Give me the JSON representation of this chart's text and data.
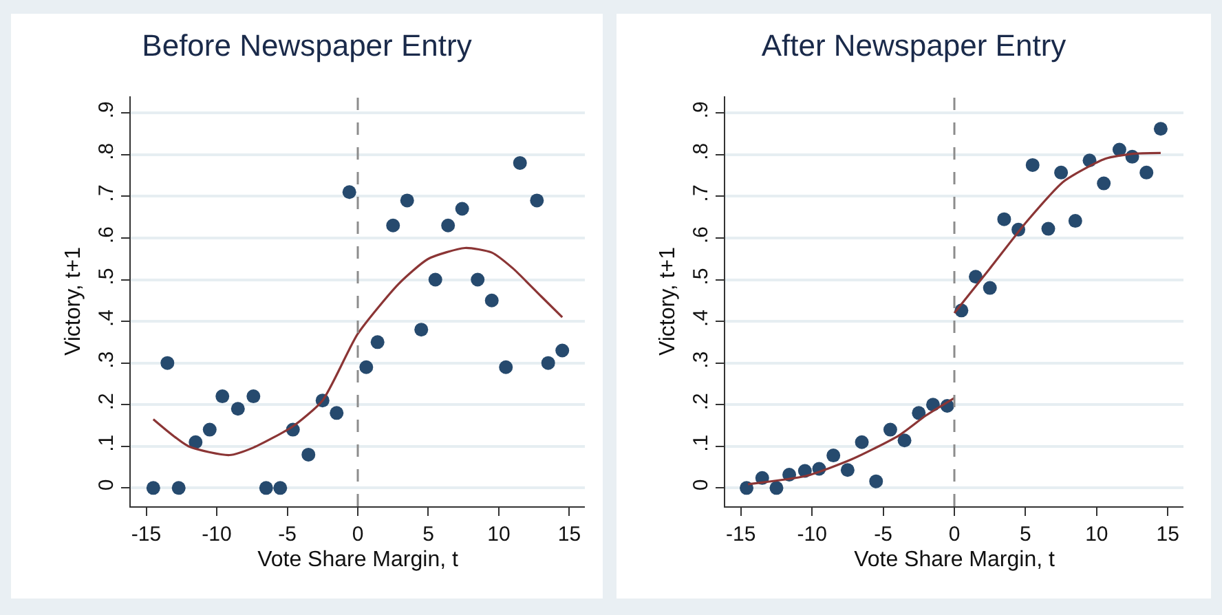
{
  "chart_data": [
    {
      "type": "scatter",
      "title": "Before Newspaper Entry",
      "xlabel": "Vote Share Margin, t",
      "ylabel": "Victory, t+1",
      "xlim": [
        -16.1,
        16.1
      ],
      "xticks": [
        -15,
        -10,
        -5,
        0,
        5,
        10,
        15
      ],
      "ylim": [
        -0.044,
        0.94
      ],
      "yticks": [
        {
          "value": 0,
          "label": "0"
        },
        {
          "value": 0.1,
          "label": ".1"
        },
        {
          "value": 0.2,
          "label": ".2"
        },
        {
          "value": 0.3,
          "label": ".3"
        },
        {
          "value": 0.4,
          "label": ".4"
        },
        {
          "value": 0.5,
          "label": ".5"
        },
        {
          "value": 0.6,
          "label": ".6"
        },
        {
          "value": 0.7,
          "label": ".7"
        },
        {
          "value": 0.8,
          "label": ".8"
        },
        {
          "value": 0.9,
          "label": ".9"
        }
      ],
      "grid": "y",
      "ref_lines": [
        {
          "axis": "x",
          "value": 0,
          "color": "#8c8c8c",
          "line_style": "dashed"
        }
      ],
      "series": [
        {
          "marker": "circle",
          "color": "#264a6e",
          "x": [
            -14.5,
            -13.5,
            -12.7,
            -11.5,
            -10.5,
            -9.6,
            -8.5,
            -7.4,
            -6.5,
            -5.5,
            -4.6,
            -3.5,
            -2.5,
            -1.5,
            -0.6,
            0.6,
            1.4,
            2.5,
            3.5,
            4.5,
            5.5,
            6.4,
            7.4,
            8.5,
            9.5,
            10.5,
            11.5,
            12.7,
            13.5,
            14.5
          ],
          "values": [
            0,
            0.3,
            0,
            0.11,
            0.14,
            0.22,
            0.19,
            0.22,
            0,
            0,
            0.14,
            0.08,
            0.21,
            0.18,
            0.71,
            0.29,
            0.35,
            0.63,
            0.69,
            0.38,
            0.5,
            0.63,
            0.67,
            0.5,
            0.45,
            0.29,
            0.78,
            0.69,
            0.3,
            0.33
          ]
        },
        {
          "type": "line",
          "marker": "none",
          "color": "#8b3535",
          "line_style": "solid",
          "x": [
            -14.5,
            -12,
            -9.1,
            -7.4,
            -4.6,
            -2.5,
            0,
            2.9,
            5,
            7.6,
            9.5,
            11,
            13,
            14.5
          ],
          "values": [
            0.165,
            0.1,
            0.079,
            0.097,
            0.148,
            0.21,
            0.37,
            0.49,
            0.55,
            0.576,
            0.565,
            0.527,
            0.46,
            0.41
          ]
        }
      ]
    },
    {
      "type": "scatter",
      "title": "After Newspaper Entry",
      "xlabel": "Vote Share Margin, t",
      "ylabel": "Victory, t+1",
      "xlim": [
        -16.1,
        16.1
      ],
      "xticks": [
        -15,
        -10,
        -5,
        0,
        5,
        10,
        15
      ],
      "ylim": [
        -0.044,
        0.94
      ],
      "yticks": [
        {
          "value": 0,
          "label": "0"
        },
        {
          "value": 0.1,
          "label": ".1"
        },
        {
          "value": 0.2,
          "label": ".2"
        },
        {
          "value": 0.3,
          "label": ".3"
        },
        {
          "value": 0.4,
          "label": ".4"
        },
        {
          "value": 0.5,
          "label": ".5"
        },
        {
          "value": 0.6,
          "label": ".6"
        },
        {
          "value": 0.7,
          "label": ".7"
        },
        {
          "value": 0.8,
          "label": ".8"
        },
        {
          "value": 0.9,
          "label": ".9"
        }
      ],
      "grid": "y",
      "ref_lines": [
        {
          "axis": "x",
          "value": 0,
          "color": "#8c8c8c",
          "line_style": "dashed"
        }
      ],
      "series": [
        {
          "marker": "circle",
          "color": "#264a6e",
          "x": [
            -14.6,
            -13.5,
            -12.5,
            -11.6,
            -10.5,
            -9.5,
            -8.5,
            -7.5,
            -6.5,
            -5.5,
            -4.5,
            -3.5,
            -2.5,
            -1.5,
            -0.5,
            0.5,
            1.5,
            2.5,
            3.5,
            4.5,
            5.5,
            6.6,
            7.5,
            8.5,
            9.5,
            10.5,
            11.6,
            12.5,
            13.5,
            14.5
          ],
          "values": [
            0,
            0.024,
            0,
            0.032,
            0.041,
            0.046,
            0.078,
            0.043,
            0.11,
            0.016,
            0.14,
            0.114,
            0.18,
            0.2,
            0.197,
            0.426,
            0.507,
            0.48,
            0.645,
            0.62,
            0.775,
            0.622,
            0.757,
            0.641,
            0.786,
            0.731,
            0.812,
            0.795,
            0.757,
            0.862
          ]
        },
        {
          "type": "line",
          "marker": "none",
          "color": "#8b3535",
          "line_style": "solid",
          "x": [
            -14.5,
            -10.4,
            -7.2,
            -3.9,
            -2,
            0
          ],
          "values": [
            0.009,
            0.029,
            0.069,
            0.126,
            0.174,
            0.216
          ]
        },
        {
          "type": "line",
          "marker": "none",
          "color": "#8b3535",
          "line_style": "solid",
          "x": [
            0,
            2.5,
            5.1,
            7.7,
            10.6,
            12.5,
            14.5
          ],
          "values": [
            0.42,
            0.527,
            0.64,
            0.736,
            0.79,
            0.802,
            0.804
          ]
        }
      ]
    }
  ]
}
